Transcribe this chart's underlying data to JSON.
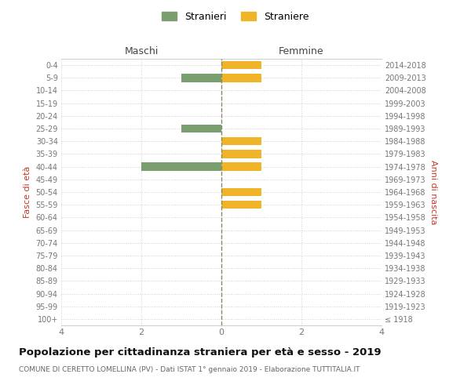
{
  "age_groups": [
    "100+",
    "95-99",
    "90-94",
    "85-89",
    "80-84",
    "75-79",
    "70-74",
    "65-69",
    "60-64",
    "55-59",
    "50-54",
    "45-49",
    "40-44",
    "35-39",
    "30-34",
    "25-29",
    "20-24",
    "15-19",
    "10-14",
    "5-9",
    "0-4"
  ],
  "birth_years": [
    "≤ 1918",
    "1919-1923",
    "1924-1928",
    "1929-1933",
    "1934-1938",
    "1939-1943",
    "1944-1948",
    "1949-1953",
    "1954-1958",
    "1959-1963",
    "1964-1968",
    "1969-1973",
    "1974-1978",
    "1979-1983",
    "1984-1988",
    "1989-1993",
    "1994-1998",
    "1999-2003",
    "2004-2008",
    "2009-2013",
    "2014-2018"
  ],
  "maschi": [
    0,
    0,
    0,
    0,
    0,
    0,
    0,
    0,
    0,
    0,
    0,
    0,
    2,
    0,
    0,
    1,
    0,
    0,
    0,
    1,
    0
  ],
  "femmine": [
    0,
    0,
    0,
    0,
    0,
    0,
    0,
    0,
    0,
    1,
    1,
    0,
    1,
    1,
    1,
    0,
    0,
    0,
    0,
    1,
    1
  ],
  "color_maschi": "#7a9e6e",
  "color_femmine": "#f0b429",
  "title": "Popolazione per cittadinanza straniera per età e sesso - 2019",
  "subtitle": "COMUNE DI CERETTO LOMELLINA (PV) - Dati ISTAT 1° gennaio 2019 - Elaborazione TUTTITALIA.IT",
  "ylabel_left": "Fasce di età",
  "ylabel_right": "Anni di nascita",
  "header_left": "Maschi",
  "header_right": "Femmine",
  "legend_maschi": "Stranieri",
  "legend_femmine": "Straniere",
  "xlim": 4,
  "background_color": "#ffffff",
  "grid_color": "#d0d0d0",
  "center_line_color": "#888866",
  "tick_color": "#777777",
  "label_color": "#c0392b",
  "header_color": "#444444",
  "title_color": "#111111",
  "subtitle_color": "#666666"
}
